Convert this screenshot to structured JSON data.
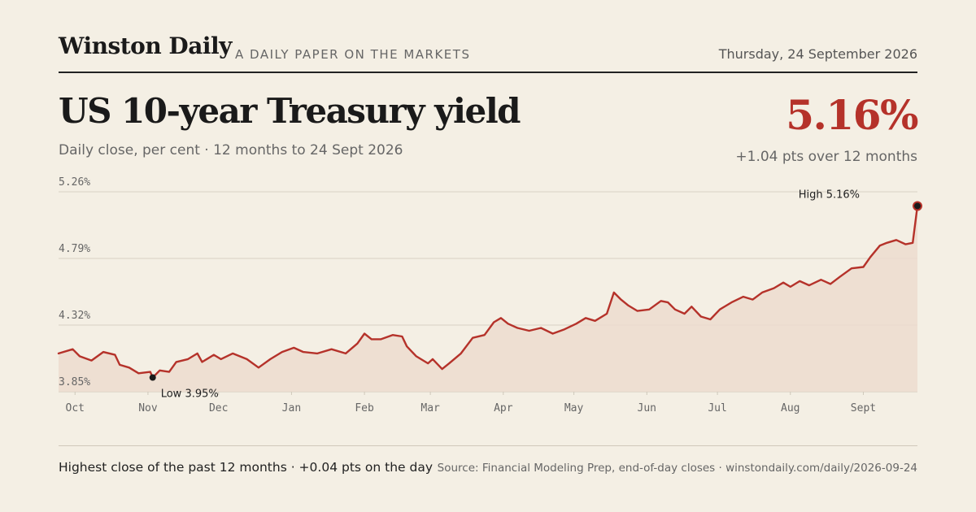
{
  "masthead": {
    "brand": "Winston Daily",
    "tagline": "A DAILY PAPER ON THE MARKETS",
    "date": "Thursday, 24 September 2026"
  },
  "headline": {
    "title": "US 10-year Treasury yield",
    "subtitle": "Daily close, per cent · 12 months to 24 Sept 2026",
    "value": "5.16%",
    "change": "+1.04 pts over 12 months"
  },
  "footer": {
    "note": "Highest close of the past 12 months · +0.04 pts on the day",
    "source": "Source: Financial Modeling Prep, end-of-day closes · winstondaily.com/daily/2026-09-24"
  },
  "colors": {
    "line": "#b5322a",
    "area": "#ecdccf",
    "grid": "#d9d2c4",
    "background": "#f4efe4"
  },
  "chart_data": {
    "type": "area",
    "title": "US 10-year Treasury yield",
    "ylabel": "",
    "xlabel": "",
    "ylim": [
      3.85,
      5.26
    ],
    "grid": true,
    "y_ticks": [
      3.85,
      4.32,
      4.79,
      5.26
    ],
    "y_tick_labels": [
      "3.85%",
      "4.32%",
      "4.79%",
      "5.26%"
    ],
    "x_ticks": [
      "2025-10-01",
      "2025-11-01",
      "2025-12-01",
      "2026-01-01",
      "2026-02-01",
      "2026-03-01",
      "2026-04-01",
      "2026-05-01",
      "2026-06-01",
      "2026-07-01",
      "2026-08-01",
      "2026-09-01"
    ],
    "x_tick_labels": [
      "Oct",
      "Nov",
      "Dec",
      "Jan",
      "Feb",
      "Mar",
      "Apr",
      "May",
      "Jun",
      "Jul",
      "Aug",
      "Sept"
    ],
    "x_range": [
      "2025-09-24",
      "2026-09-24"
    ],
    "series": [
      {
        "points": [
          [
            "2025-09-24",
            4.12
          ],
          [
            "2025-09-30",
            4.15
          ],
          [
            "2025-10-03",
            4.1
          ],
          [
            "2025-10-08",
            4.07
          ],
          [
            "2025-10-13",
            4.13
          ],
          [
            "2025-10-18",
            4.11
          ],
          [
            "2025-10-20",
            4.04
          ],
          [
            "2025-10-24",
            4.02
          ],
          [
            "2025-10-28",
            3.98
          ],
          [
            "2025-11-02",
            3.99
          ],
          [
            "2025-11-03",
            3.95
          ],
          [
            "2025-11-06",
            4.0
          ],
          [
            "2025-11-10",
            3.99
          ],
          [
            "2025-11-13",
            4.06
          ],
          [
            "2025-11-18",
            4.08
          ],
          [
            "2025-11-22",
            4.12
          ],
          [
            "2025-11-24",
            4.06
          ],
          [
            "2025-11-29",
            4.11
          ],
          [
            "2025-12-02",
            4.08
          ],
          [
            "2025-12-07",
            4.12
          ],
          [
            "2025-12-13",
            4.08
          ],
          [
            "2025-12-18",
            4.02
          ],
          [
            "2025-12-23",
            4.08
          ],
          [
            "2025-12-28",
            4.13
          ],
          [
            "2026-01-02",
            4.16
          ],
          [
            "2026-01-06",
            4.13
          ],
          [
            "2026-01-12",
            4.12
          ],
          [
            "2026-01-18",
            4.15
          ],
          [
            "2026-01-24",
            4.12
          ],
          [
            "2026-01-29",
            4.19
          ],
          [
            "2026-02-01",
            4.26
          ],
          [
            "2026-02-04",
            4.22
          ],
          [
            "2026-02-08",
            4.22
          ],
          [
            "2026-02-13",
            4.25
          ],
          [
            "2026-02-17",
            4.24
          ],
          [
            "2026-02-19",
            4.17
          ],
          [
            "2026-02-23",
            4.1
          ],
          [
            "2026-02-28",
            4.05
          ],
          [
            "2026-03-02",
            4.08
          ],
          [
            "2026-03-06",
            4.01
          ],
          [
            "2026-03-09",
            4.05
          ],
          [
            "2026-03-14",
            4.12
          ],
          [
            "2026-03-19",
            4.23
          ],
          [
            "2026-03-24",
            4.25
          ],
          [
            "2026-03-28",
            4.34
          ],
          [
            "2026-03-31",
            4.37
          ],
          [
            "2026-04-03",
            4.33
          ],
          [
            "2026-04-07",
            4.3
          ],
          [
            "2026-04-12",
            4.28
          ],
          [
            "2026-04-17",
            4.3
          ],
          [
            "2026-04-22",
            4.26
          ],
          [
            "2026-04-27",
            4.29
          ],
          [
            "2026-05-02",
            4.33
          ],
          [
            "2026-05-06",
            4.37
          ],
          [
            "2026-05-10",
            4.35
          ],
          [
            "2026-05-15",
            4.4
          ],
          [
            "2026-05-18",
            4.55
          ],
          [
            "2026-05-21",
            4.5
          ],
          [
            "2026-05-24",
            4.46
          ],
          [
            "2026-05-28",
            4.42
          ],
          [
            "2026-06-02",
            4.43
          ],
          [
            "2026-06-07",
            4.49
          ],
          [
            "2026-06-10",
            4.48
          ],
          [
            "2026-06-13",
            4.43
          ],
          [
            "2026-06-17",
            4.4
          ],
          [
            "2026-06-20",
            4.45
          ],
          [
            "2026-06-24",
            4.38
          ],
          [
            "2026-06-28",
            4.36
          ],
          [
            "2026-07-02",
            4.43
          ],
          [
            "2026-07-07",
            4.48
          ],
          [
            "2026-07-12",
            4.52
          ],
          [
            "2026-07-16",
            4.5
          ],
          [
            "2026-07-20",
            4.55
          ],
          [
            "2026-07-25",
            4.58
          ],
          [
            "2026-07-29",
            4.62
          ],
          [
            "2026-08-01",
            4.59
          ],
          [
            "2026-08-05",
            4.63
          ],
          [
            "2026-08-09",
            4.6
          ],
          [
            "2026-08-14",
            4.64
          ],
          [
            "2026-08-18",
            4.61
          ],
          [
            "2026-08-22",
            4.66
          ],
          [
            "2026-08-27",
            4.72
          ],
          [
            "2026-09-01",
            4.73
          ],
          [
            "2026-09-04",
            4.8
          ],
          [
            "2026-09-08",
            4.88
          ],
          [
            "2026-09-11",
            4.9
          ],
          [
            "2026-09-15",
            4.92
          ],
          [
            "2026-09-19",
            4.89
          ],
          [
            "2026-09-22",
            4.9
          ],
          [
            "2026-09-24",
            5.16
          ]
        ]
      }
    ],
    "annotations": [
      {
        "label": "High 5.16%",
        "date": "2026-09-24",
        "value": 5.16
      },
      {
        "label": "Low 3.95%",
        "date": "2025-11-03",
        "value": 3.95
      }
    ]
  }
}
